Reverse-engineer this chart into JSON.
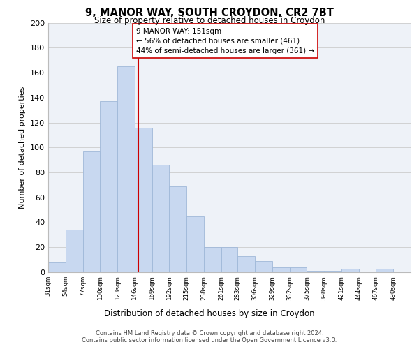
{
  "title": "9, MANOR WAY, SOUTH CROYDON, CR2 7BT",
  "subtitle": "Size of property relative to detached houses in Croydon",
  "xlabel": "Distribution of detached houses by size in Croydon",
  "ylabel": "Number of detached properties",
  "bar_left_edges": [
    31,
    54,
    77,
    100,
    123,
    146,
    169,
    192,
    215,
    238,
    261,
    283,
    306,
    329,
    352,
    375,
    398,
    421,
    444,
    467
  ],
  "bar_widths": [
    23,
    23,
    23,
    23,
    23,
    23,
    23,
    23,
    23,
    23,
    22,
    23,
    23,
    23,
    23,
    23,
    23,
    23,
    23,
    23
  ],
  "bar_heights": [
    8,
    34,
    97,
    137,
    165,
    116,
    86,
    69,
    45,
    20,
    20,
    13,
    9,
    4,
    4,
    1,
    1,
    3,
    0,
    3
  ],
  "bar_color": "#c8d8f0",
  "bar_edge_color": "#a0b8d8",
  "grid_color": "#cccccc",
  "background_color": "#ffffff",
  "plot_bg_color": "#eef2f8",
  "vline_x": 151,
  "vline_color": "#cc0000",
  "annotation_text": "9 MANOR WAY: 151sqm\n← 56% of detached houses are smaller (461)\n44% of semi-detached houses are larger (361) →",
  "annotation_box_color": "#ffffff",
  "annotation_box_edge": "#cc0000",
  "tick_labels": [
    "31sqm",
    "54sqm",
    "77sqm",
    "100sqm",
    "123sqm",
    "146sqm",
    "169sqm",
    "192sqm",
    "215sqm",
    "238sqm",
    "261sqm",
    "283sqm",
    "306sqm",
    "329sqm",
    "352sqm",
    "375sqm",
    "398sqm",
    "421sqm",
    "444sqm",
    "467sqm",
    "490sqm"
  ],
  "ylim": [
    0,
    200
  ],
  "yticks": [
    0,
    20,
    40,
    60,
    80,
    100,
    120,
    140,
    160,
    180,
    200
  ],
  "footer_line1": "Contains HM Land Registry data © Crown copyright and database right 2024.",
  "footer_line2": "Contains public sector information licensed under the Open Government Licence v3.0."
}
